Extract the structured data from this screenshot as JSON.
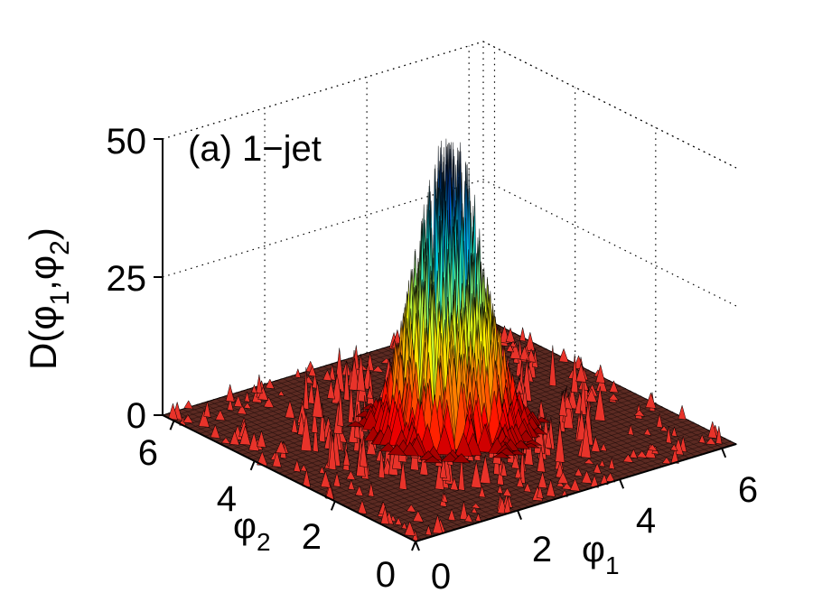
{
  "chart_data": {
    "type": "surface",
    "annotation": "(a) 1−jet",
    "zlabel": {
      "main": "D(φ",
      "sub1": "1",
      "mid": ",φ",
      "sub2": "2",
      "end": ")"
    },
    "xlabel": {
      "main": "φ",
      "sub": "1"
    },
    "ylabel": {
      "main": "φ",
      "sub": "2"
    },
    "x_ticks": [
      "0",
      "2",
      "4",
      "6"
    ],
    "y_ticks": [
      "0",
      "2",
      "4",
      "6"
    ],
    "z_ticks": [
      "0",
      "25",
      "50"
    ],
    "xlim": [
      0,
      6.28
    ],
    "ylim": [
      0,
      6.28
    ],
    "zlim": [
      0,
      50
    ],
    "grid": true,
    "colormap": "jet",
    "peak": {
      "phi1": 3.14,
      "phi2": 3.14,
      "height": 50
    },
    "background_level": 0,
    "colors": {
      "floor": "#5b2a22",
      "floor_mesh": "#000000",
      "noise": "#e8332a"
    }
  }
}
